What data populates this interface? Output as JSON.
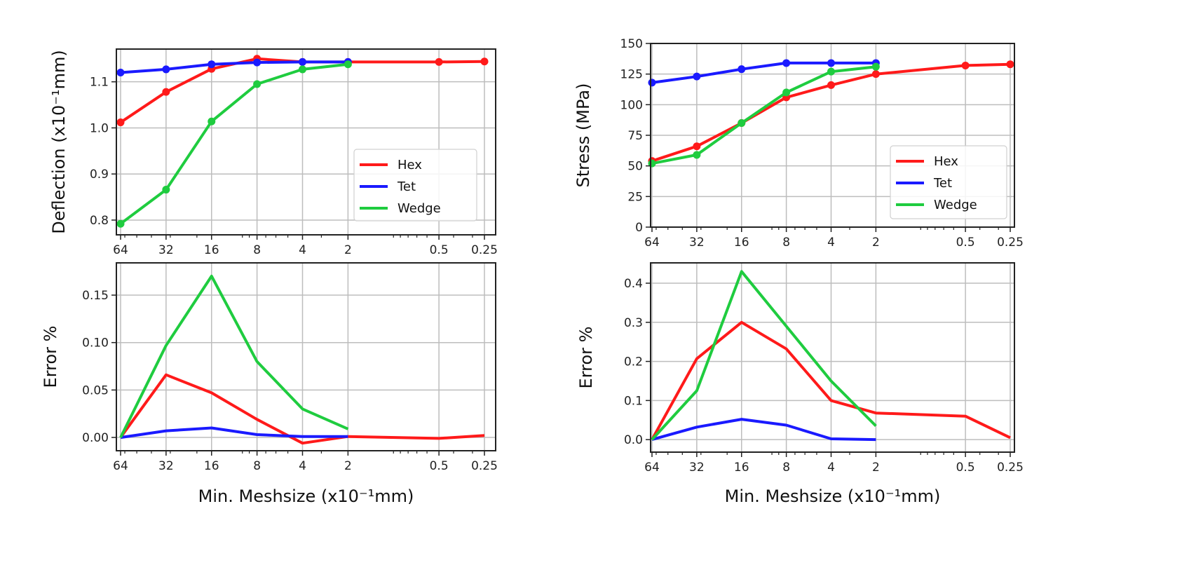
{
  "chart_data": [
    {
      "type": "line",
      "panel": "top-left",
      "xlabel": "",
      "ylabel": "Deflection (x10⁻¹mm)",
      "x_scale": "log",
      "x_ticks": [
        64,
        32,
        16,
        8,
        4,
        2,
        0.5,
        0.25
      ],
      "x_tick_labels": [
        "64",
        "32",
        "16",
        "8",
        "4",
        "2",
        "0.5",
        "0.25"
      ],
      "xlim": [
        64,
        0.25
      ],
      "ylim": [
        0.768,
        1.171
      ],
      "y_ticks": [
        0.8,
        0.9,
        1.0,
        1.1
      ],
      "y_tick_labels": [
        "0.8",
        "0.9",
        "1.0",
        "1.1"
      ],
      "grid": true,
      "markers": true,
      "legend": "right",
      "series": [
        {
          "name": "Hex",
          "color": "#ff1a1a",
          "x": [
            64,
            32,
            16,
            8,
            4,
            2,
            0.5,
            0.25
          ],
          "values": [
            1.012,
            1.078,
            1.128,
            1.15,
            1.143,
            1.143,
            1.143,
            1.144
          ]
        },
        {
          "name": "Tet",
          "color": "#1a1aff",
          "x": [
            64,
            32,
            16,
            8,
            4,
            2
          ],
          "values": [
            1.12,
            1.127,
            1.138,
            1.142,
            1.143,
            1.143
          ]
        },
        {
          "name": "Wedge",
          "color": "#1fcc3f",
          "x": [
            64,
            32,
            16,
            8,
            4,
            2
          ],
          "values": [
            0.792,
            0.866,
            1.014,
            1.095,
            1.127,
            1.138
          ]
        }
      ]
    },
    {
      "type": "line",
      "panel": "bottom-left",
      "xlabel": "Min. Meshsize (x10⁻¹mm)",
      "ylabel": "Error %",
      "x_scale": "log",
      "x_ticks": [
        64,
        32,
        16,
        8,
        4,
        2,
        0.5,
        0.25
      ],
      "x_tick_labels": [
        "64",
        "32",
        "16",
        "8",
        "4",
        "2",
        "0.5",
        "0.25"
      ],
      "xlim": [
        64,
        0.25
      ],
      "ylim": [
        -0.014,
        0.184
      ],
      "y_ticks": [
        0.0,
        0.05,
        0.1,
        0.15
      ],
      "y_tick_labels": [
        "0.00",
        "0.05",
        "0.10",
        "0.15"
      ],
      "grid": true,
      "markers": false,
      "series": [
        {
          "name": "Hex",
          "color": "#ff1a1a",
          "x": [
            64,
            32,
            16,
            8,
            4,
            2,
            0.5,
            0.25
          ],
          "values": [
            0,
            0.066,
            0.047,
            0.019,
            -0.006,
            0.001,
            -0.001,
            0.002
          ]
        },
        {
          "name": "Tet",
          "color": "#1a1aff",
          "x": [
            64,
            32,
            16,
            8,
            4,
            2
          ],
          "values": [
            0,
            0.007,
            0.01,
            0.003,
            0.001,
            0.001
          ]
        },
        {
          "name": "Wedge",
          "color": "#1fcc3f",
          "x": [
            64,
            32,
            16,
            8,
            4,
            2
          ],
          "values": [
            0,
            0.097,
            0.17,
            0.08,
            0.03,
            0.009
          ]
        }
      ]
    },
    {
      "type": "line",
      "panel": "top-right",
      "xlabel": "",
      "ylabel": "Stress (MPa)",
      "x_scale": "log",
      "x_ticks": [
        64,
        32,
        16,
        8,
        4,
        2,
        0.5,
        0.25
      ],
      "x_tick_labels": [
        "64",
        "32",
        "16",
        "8",
        "4",
        "2",
        "0.5",
        "0.25"
      ],
      "xlim": [
        64,
        0.25
      ],
      "ylim": [
        0,
        150
      ],
      "y_ticks": [
        0,
        25,
        50,
        75,
        100,
        125,
        150
      ],
      "y_tick_labels": [
        "0",
        "25",
        "50",
        "75",
        "100",
        "125",
        "150"
      ],
      "grid": true,
      "markers": true,
      "legend": "right",
      "series": [
        {
          "name": "Hex",
          "color": "#ff1a1a",
          "x": [
            64,
            32,
            16,
            8,
            4,
            2,
            0.5,
            0.25
          ],
          "values": [
            54,
            66,
            85,
            106,
            116,
            125,
            132,
            133
          ]
        },
        {
          "name": "Tet",
          "color": "#1a1aff",
          "x": [
            64,
            32,
            16,
            8,
            4,
            2
          ],
          "values": [
            118,
            123,
            129,
            134,
            134,
            134
          ]
        },
        {
          "name": "Wedge",
          "color": "#1fcc3f",
          "x": [
            64,
            32,
            16,
            8,
            4,
            2
          ],
          "values": [
            52,
            59,
            85,
            110,
            127,
            131
          ]
        }
      ]
    },
    {
      "type": "line",
      "panel": "bottom-right",
      "xlabel": "Min. Meshsize (x10⁻¹mm)",
      "ylabel": "Error %",
      "x_scale": "log",
      "x_ticks": [
        64,
        32,
        16,
        8,
        4,
        2,
        0.5,
        0.25
      ],
      "x_tick_labels": [
        "64",
        "32",
        "16",
        "8",
        "4",
        "2",
        "0.5",
        "0.25"
      ],
      "xlim": [
        64,
        0.25
      ],
      "ylim": [
        -0.032,
        0.452
      ],
      "y_ticks": [
        0.0,
        0.1,
        0.2,
        0.3,
        0.4
      ],
      "y_tick_labels": [
        "0.0",
        "0.1",
        "0.2",
        "0.3",
        "0.4"
      ],
      "grid": true,
      "markers": false,
      "series": [
        {
          "name": "Hex",
          "color": "#ff1a1a",
          "x": [
            64,
            32,
            16,
            8,
            4,
            2,
            0.5,
            0.25
          ],
          "values": [
            0,
            0.207,
            0.3,
            0.232,
            0.1,
            0.068,
            0.06,
            0.005
          ]
        },
        {
          "name": "Tet",
          "color": "#1a1aff",
          "x": [
            64,
            32,
            16,
            8,
            4,
            2
          ],
          "values": [
            0,
            0.032,
            0.052,
            0.037,
            0.002,
            0.0
          ]
        },
        {
          "name": "Wedge",
          "color": "#1fcc3f",
          "x": [
            64,
            32,
            16,
            8,
            4,
            2
          ],
          "values": [
            0,
            0.125,
            0.43,
            0.29,
            0.15,
            0.035
          ]
        }
      ]
    }
  ]
}
